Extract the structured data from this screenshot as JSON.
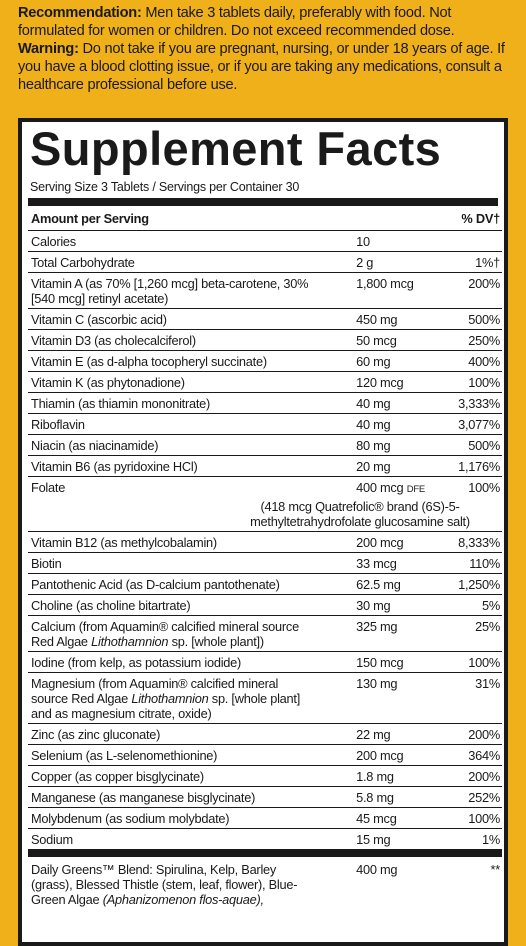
{
  "notices": [
    {
      "label": "Recommendation:",
      "text": "Men take 3 tablets daily, preferably with food. Not formulated for women or children. Do not exceed recommended dose."
    },
    {
      "label": "Warning:",
      "text": "Do not take if you are pregnant, nursing, or under 18 years of age. If you have a blood clotting issue, or if you are taking any medications, consult a healthcare professional before use."
    }
  ],
  "facts": {
    "title": "Supplement Facts",
    "serving": "Serving Size 3 Tablets / Servings per Container 30",
    "header": {
      "amount": "Amount per Serving",
      "dv": "% DV†"
    },
    "rows": [
      {
        "name": [
          {
            "text": "Calories"
          }
        ],
        "amount": "10",
        "dv": null
      },
      {
        "name": [
          {
            "text": "Total Carbohydrate"
          }
        ],
        "amount": "2 g",
        "dv": "1%†"
      },
      {
        "name": [
          {
            "text": "Vitamin A (as 70% [1,260 mcg] beta-carotene, 30% [540 mcg] retinyl acetate)"
          }
        ],
        "amount": "1,800 mcg",
        "dv": "200%"
      },
      {
        "name": [
          {
            "text": "Vitamin C (ascorbic acid)"
          }
        ],
        "amount": "450 mg",
        "dv": "500%"
      },
      {
        "name": [
          {
            "text": "Vitamin D3 (as cholecalciferol)"
          }
        ],
        "amount": "50 mcg",
        "dv": "250%"
      },
      {
        "name": [
          {
            "text": "Vitamin E (as d-alpha tocopheryl succinate)"
          }
        ],
        "amount": "60 mg",
        "dv": "400%"
      },
      {
        "name": [
          {
            "text": "Vitamin K (as phytonadione)"
          }
        ],
        "amount": "120 mcg",
        "dv": "100%"
      },
      {
        "name": [
          {
            "text": "Thiamin (as thiamin mononitrate)"
          }
        ],
        "amount": "40 mg",
        "dv": "3,333%"
      },
      {
        "name": [
          {
            "text": "Riboflavin"
          }
        ],
        "amount": "40 mg",
        "dv": "3,077%"
      },
      {
        "name": [
          {
            "text": "Niacin (as niacinamide)"
          }
        ],
        "amount": "80 mg",
        "dv": "500%"
      },
      {
        "name": [
          {
            "text": "Vitamin B6 (as pyridoxine HCl)"
          }
        ],
        "amount": "20 mg",
        "dv": "1,176%"
      },
      {
        "name": [
          {
            "text": "Folate"
          }
        ],
        "amount": "400 mcg",
        "amount_unit": "DFE",
        "dv": "100%",
        "note": "(418 mcg Quatrefolic® brand (6S)-5-methyltetrahydrofolate glucosamine salt)"
      },
      {
        "name": [
          {
            "text": "Vitamin B12 (as methylcobalamin)"
          }
        ],
        "amount": "200 mcg",
        "dv": "8,333%"
      },
      {
        "name": [
          {
            "text": "Biotin"
          }
        ],
        "amount": "33 mcg",
        "dv": "110%"
      },
      {
        "name": [
          {
            "text": "Pantothenic Acid (as D-calcium pantothenate)"
          }
        ],
        "amount": "62.5 mg",
        "dv": "1,250%"
      },
      {
        "name": [
          {
            "text": "Choline (as choline bitartrate)"
          }
        ],
        "amount": "30 mg",
        "dv": "5%"
      },
      {
        "name": [
          {
            "text": "Calcium (from Aquamin® calcified mineral source Red Algae "
          },
          {
            "text": "Lithothamnion",
            "italic": true
          },
          {
            "text": " sp. [whole plant])"
          }
        ],
        "amount": "325 mg",
        "dv": "25%"
      },
      {
        "name": [
          {
            "text": "Iodine (from kelp, as potassium iodide)"
          }
        ],
        "amount": "150 mcg",
        "dv": "100%"
      },
      {
        "name": [
          {
            "text": "Magnesium (from Aquamin® calcified mineral source Red Algae "
          },
          {
            "text": "Lithothamnion",
            "italic": true
          },
          {
            "text": " sp. [whole plant] and as magnesium citrate, oxide)"
          }
        ],
        "amount": "130 mg",
        "dv": "31%"
      },
      {
        "name": [
          {
            "text": "Zinc (as zinc gluconate)"
          }
        ],
        "amount": "22 mg",
        "dv": "200%"
      },
      {
        "name": [
          {
            "text": "Selenium (as L-selenomethionine)"
          }
        ],
        "amount": "200 mcg",
        "dv": "364%"
      },
      {
        "name": [
          {
            "text": "Copper (as copper bisglycinate)"
          }
        ],
        "amount": "1.8 mg",
        "dv": "200%"
      },
      {
        "name": [
          {
            "text": "Manganese (as manganese bisglycinate)"
          }
        ],
        "amount": "5.8 mg",
        "dv": "252%"
      },
      {
        "name": [
          {
            "text": "Molybdenum (as sodium molybdate)"
          }
        ],
        "amount": "45 mcg",
        "dv": "100%"
      },
      {
        "name": [
          {
            "text": "Sodium"
          }
        ],
        "amount": "15 mg",
        "dv": "1%"
      },
      {
        "name": [
          {
            "text": "Daily Greens™ Blend: Spirulina, Kelp, Barley (grass), Blessed Thistle (stem, leaf, flower), Blue-Green Algae "
          },
          {
            "text": "(Aphanizomenon flos-aquae),",
            "italic": true
          }
        ],
        "amount": "400 mg",
        "dv": "**",
        "separator": "thick"
      }
    ]
  }
}
